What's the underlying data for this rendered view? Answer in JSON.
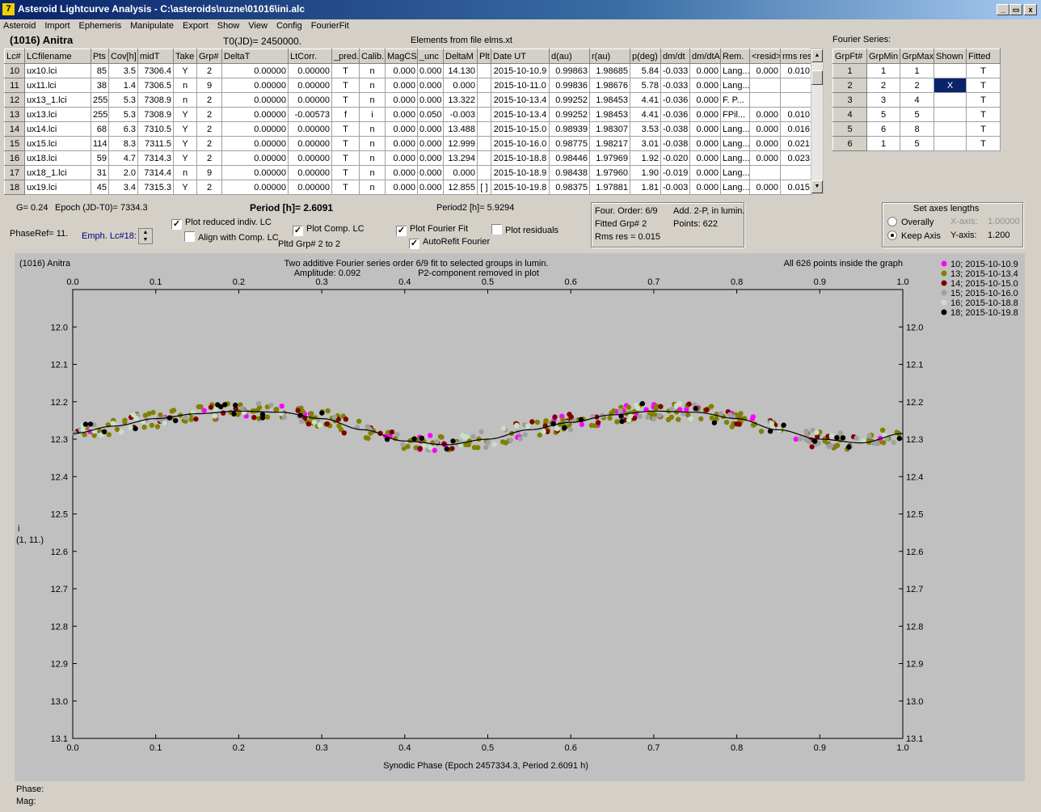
{
  "window": {
    "title": "Asteroid Lightcurve Analysis - C:\\asteroids\\ruzne\\01016\\ini.alc",
    "app_icon": "7",
    "min_glyph": "_",
    "max_glyph": "▭",
    "close_glyph": "x"
  },
  "menu": [
    "Asteroid",
    "Import",
    "Ephemeris",
    "Manipulate",
    "Export",
    "Show",
    "View",
    "Config",
    "FourierFit"
  ],
  "header": {
    "asteroid": "(1016) Anitra",
    "t0": "T0(JD)= 2450000.",
    "elements": "Elements from file elms.xt"
  },
  "table": {
    "columns": [
      "Lc#",
      "LCfilename",
      "Pts",
      "Cov[h]",
      "midT",
      "Take",
      "Grp#",
      "DeltaT",
      "LtCorr.",
      "_pred.",
      "Calib.",
      "MagCS",
      "_unc",
      "DeltaM",
      "Plt",
      "Date UT",
      "d(au)",
      "r(au)",
      "p(deg)",
      "dm/dt",
      "dm/dtA",
      "Rem.",
      "<resid>",
      "rms res"
    ],
    "rows": [
      [
        "10",
        "ux10.lci",
        "85",
        "3.5",
        "7306.4",
        "Y",
        "2",
        "0.00000",
        "0.00000",
        "T",
        "n",
        "0.000",
        "0.000",
        "14.130",
        "",
        "2015-10-10.9",
        "0.99863",
        "1.98685",
        "5.84",
        "-0.033",
        "0.000",
        "Lang...",
        "0.000",
        "0.010"
      ],
      [
        "11",
        "ux11.lci",
        "38",
        "1.4",
        "7306.5",
        "n",
        "9",
        "0.00000",
        "0.00000",
        "T",
        "n",
        "0.000",
        "0.000",
        "0.000",
        "",
        "2015-10-11.0",
        "0.99836",
        "1.98676",
        "5.78",
        "-0.033",
        "0.000",
        "Lang...",
        "",
        ""
      ],
      [
        "12",
        "ux13_1.lci",
        "255",
        "5.3",
        "7308.9",
        "n",
        "2",
        "0.00000",
        "0.00000",
        "T",
        "n",
        "0.000",
        "0.000",
        "13.322",
        "",
        "2015-10-13.4",
        "0.99252",
        "1.98453",
        "4.41",
        "-0.036",
        "0.000",
        "F. P...",
        "",
        ""
      ],
      [
        "13",
        "ux13.lci",
        "255",
        "5.3",
        "7308.9",
        "Y",
        "2",
        "0.00000",
        "-0.00573",
        "f",
        "i",
        "0.000",
        "0.050",
        "-0.003",
        "",
        "2015-10-13.4",
        "0.99252",
        "1.98453",
        "4.41",
        "-0.036",
        "0.000",
        "FPil...",
        "0.000",
        "0.010"
      ],
      [
        "14",
        "ux14.lci",
        "68",
        "6.3",
        "7310.5",
        "Y",
        "2",
        "0.00000",
        "0.00000",
        "T",
        "n",
        "0.000",
        "0.000",
        "13.488",
        "",
        "2015-10-15.0",
        "0.98939",
        "1.98307",
        "3.53",
        "-0.038",
        "0.000",
        "Lang...",
        "0.000",
        "0.016"
      ],
      [
        "15",
        "ux15.lci",
        "114",
        "8.3",
        "7311.5",
        "Y",
        "2",
        "0.00000",
        "0.00000",
        "T",
        "n",
        "0.000",
        "0.000",
        "12.999",
        "",
        "2015-10-16.0",
        "0.98775",
        "1.98217",
        "3.01",
        "-0.038",
        "0.000",
        "Lang...",
        "0.000",
        "0.021"
      ],
      [
        "16",
        "ux18.lci",
        "59",
        "4.7",
        "7314.3",
        "Y",
        "2",
        "0.00000",
        "0.00000",
        "T",
        "n",
        "0.000",
        "0.000",
        "13.294",
        "",
        "2015-10-18.8",
        "0.98446",
        "1.97969",
        "1.92",
        "-0.020",
        "0.000",
        "Lang...",
        "0.000",
        "0.023"
      ],
      [
        "17",
        "ux18_1.lci",
        "31",
        "2.0",
        "7314.4",
        "n",
        "9",
        "0.00000",
        "0.00000",
        "T",
        "n",
        "0.000",
        "0.000",
        "0.000",
        "",
        "2015-10-18.9",
        "0.98438",
        "1.97960",
        "1.90",
        "-0.019",
        "0.000",
        "Lang...",
        "",
        ""
      ],
      [
        "18",
        "ux19.lci",
        "45",
        "3.4",
        "7315.3",
        "Y",
        "2",
        "0.00000",
        "0.00000",
        "T",
        "n",
        "0.000",
        "0.000",
        "12.855",
        "[ ]",
        "2015-10-19.8",
        "0.98375",
        "1.97881",
        "1.81",
        "-0.003",
        "0.000",
        "Lang...",
        "0.000",
        "0.015"
      ]
    ]
  },
  "fourier": {
    "label": "Fourier Series:",
    "columns": [
      "GrpFt#",
      "GrpMin",
      "GrpMax",
      "Shown",
      "Fitted"
    ],
    "rows": [
      [
        "1",
        "1",
        "1",
        "",
        "T"
      ],
      [
        "2",
        "2",
        "2",
        "X",
        "T"
      ],
      [
        "3",
        "3",
        "4",
        "",
        "T"
      ],
      [
        "4",
        "5",
        "5",
        "",
        "T"
      ],
      [
        "5",
        "6",
        "8",
        "",
        "T"
      ],
      [
        "6",
        "1",
        "5",
        "",
        "T"
      ]
    ]
  },
  "controls": {
    "g": "G= 0.24",
    "epoch": "Epoch (JD-T0)= 7334.3",
    "period": "Period [h]= 2.6091",
    "period2": "Period2 [h]= 5.9294",
    "phaseref": "PhaseRef= 11.",
    "emph": "Emph. Lc#18:",
    "plot_reduced": "Plot reduced indiv. LC",
    "align_comp": "Align with Comp. LC",
    "plot_comp": "Plot Comp. LC",
    "pltd_grp": "Pltd Grp#  2  to   2",
    "plot_fourier": "Plot Fourier Fit",
    "autorefit": "AutoRefit Fourier",
    "plot_residuals": "Plot residuals",
    "check_mark": "✓"
  },
  "info": {
    "four_order": "Four. Order:  6/9",
    "add": "Add. 2-P, in lumin.",
    "fitted_grp": "Fitted Grp# 2",
    "points": "Points: 622",
    "rms": "Rms res      = 0.015"
  },
  "axes_box": {
    "title": "Set axes lengths",
    "overally": "Overally",
    "keep_axis": "Keep Axis",
    "x_label": "X-axis:",
    "x_value": "1.00000",
    "y_label": "Y-axis:",
    "y_value": "1.200"
  },
  "status": {
    "phase": "Phase:",
    "mag": "Mag:"
  },
  "chart_data": {
    "type": "scatter",
    "title": "Two additive Fourier series order 6/9 fit to selected groups in lumin.",
    "subtitle_left": "Amplitude: 0.092",
    "subtitle_right": "P2-component removed in plot",
    "corner_left": "(1016) Anitra",
    "corner_right": "All 626 points inside the graph",
    "xlabel": "Synodic Phase (Epoch 2457334.3, Period 2.6091 h)",
    "ylabel": "i",
    "ylabel2": "(1, 11.)",
    "xlim": [
      0.0,
      1.0
    ],
    "ylim": [
      13.1,
      11.9
    ],
    "y_inverted": true,
    "x_ticks": [
      "0.0",
      "0.1",
      "0.2",
      "0.3",
      "0.4",
      "0.5",
      "0.6",
      "0.7",
      "0.8",
      "0.9",
      "1.0"
    ],
    "y_ticks": [
      "12.0",
      "12.1",
      "12.2",
      "12.3",
      "12.4",
      "12.5",
      "12.6",
      "12.7",
      "12.8",
      "12.9",
      "13.0",
      "13.1"
    ],
    "fit_curve": {
      "phase": [
        0.0,
        0.05,
        0.1,
        0.15,
        0.2,
        0.25,
        0.3,
        0.35,
        0.4,
        0.45,
        0.5,
        0.55,
        0.6,
        0.65,
        0.7,
        0.75,
        0.8,
        0.85,
        0.9,
        0.95,
        1.0
      ],
      "mag": [
        12.285,
        12.265,
        12.245,
        12.232,
        12.225,
        12.228,
        12.245,
        12.275,
        12.305,
        12.315,
        12.3,
        12.275,
        12.255,
        12.235,
        12.225,
        12.228,
        12.245,
        12.275,
        12.3,
        12.31,
        12.285
      ]
    },
    "series": [
      {
        "name": "10; 2015-10-10.9",
        "color": "#ff00ff",
        "count": 40
      },
      {
        "name": "13; 2015-10-13.4",
        "color": "#808000",
        "count": 200
      },
      {
        "name": "14; 2015-10-15.0",
        "color": "#800000",
        "count": 50
      },
      {
        "name": "15; 2015-10-16.0",
        "color": "#a0a0a0",
        "count": 80
      },
      {
        "name": "16; 2015-10-18.8",
        "color": "#c8e0c8",
        "count": 45
      },
      {
        "name": "18; 2015-10-19.8",
        "color": "#000000",
        "count": 35
      }
    ],
    "grid": false,
    "legend_position": "right"
  }
}
